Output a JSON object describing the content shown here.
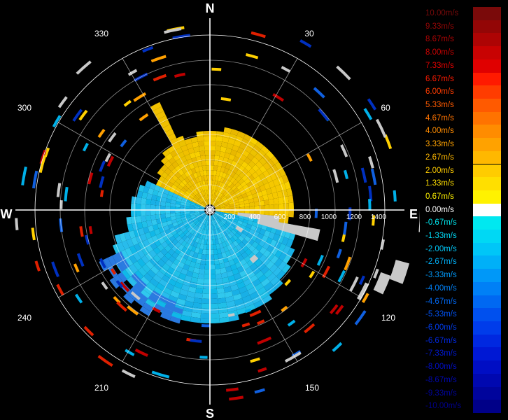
{
  "compass": {
    "north": "N",
    "south": "S",
    "east": "E",
    "west": "W",
    "degrees": [
      "30",
      "60",
      "120",
      "150",
      "210",
      "240",
      "300",
      "330"
    ],
    "range_labels": [
      "200",
      "400",
      "600",
      "800",
      "1000",
      "1200",
      "1400"
    ]
  },
  "legend": {
    "entries": [
      {
        "label": "10.00m/s",
        "color": "#7a0a0a"
      },
      {
        "label": "9.33m/s",
        "color": "#930606"
      },
      {
        "label": "8.67m/s",
        "color": "#ad0404"
      },
      {
        "label": "8.00m/s",
        "color": "#c80202"
      },
      {
        "label": "7.33m/s",
        "color": "#e00000"
      },
      {
        "label": "6.67m/s",
        "color": "#ff1a00"
      },
      {
        "label": "6.00m/s",
        "color": "#ff3c00"
      },
      {
        "label": "5.33m/s",
        "color": "#ff5a00"
      },
      {
        "label": "4.67m/s",
        "color": "#ff7300"
      },
      {
        "label": "4.00m/s",
        "color": "#ff8c00"
      },
      {
        "label": "3.33m/s",
        "color": "#ffa200"
      },
      {
        "label": "2.67m/s",
        "color": "#ffb800"
      },
      {
        "label": "2.00m/s",
        "color": "#ffcc00"
      },
      {
        "label": "1.33m/s",
        "color": "#ffdf00"
      },
      {
        "label": "0.67m/s",
        "color": "#fff200"
      },
      {
        "label": "0.00m/s",
        "color": "#ffffff"
      },
      {
        "label": "-0.67m/s",
        "color": "#00e8f0"
      },
      {
        "label": "-1.33m/s",
        "color": "#00d8f4"
      },
      {
        "label": "-2.00m/s",
        "color": "#00c6f7"
      },
      {
        "label": "-2.67m/s",
        "color": "#00b0f8"
      },
      {
        "label": "-3.33m/s",
        "color": "#0098f8"
      },
      {
        "label": "-4.00m/s",
        "color": "#0080f6"
      },
      {
        "label": "-4.67m/s",
        "color": "#0068f2"
      },
      {
        "label": "-5.33m/s",
        "color": "#0050ee"
      },
      {
        "label": "-6.00m/s",
        "color": "#003cea"
      },
      {
        "label": "-6.67m/s",
        "color": "#0028e0"
      },
      {
        "label": "-7.33m/s",
        "color": "#0018d4"
      },
      {
        "label": "-8.00m/s",
        "color": "#000ec4"
      },
      {
        "label": "-8.67m/s",
        "color": "#0008b0"
      },
      {
        "label": "-9.33m/s",
        "color": "#00049c"
      },
      {
        "label": "-10.00m/s",
        "color": "#000088"
      }
    ]
  },
  "colors": {
    "background": "#000000",
    "grid": "#ffffff",
    "no_data": "#c8c8c8",
    "approach": "#00c6f7",
    "recede": "#ffcc00"
  }
}
